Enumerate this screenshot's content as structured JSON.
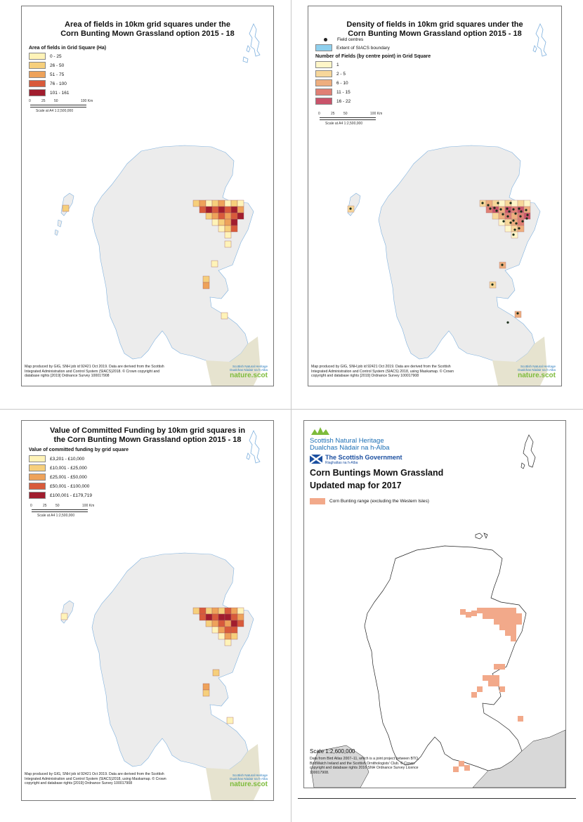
{
  "panels": {
    "area": {
      "title_line1": "Area of fields in 10km grid squares under the",
      "title_line2": "Corn Bunting Mown Grassland option 2015 - 18",
      "legend_title": "Area of fields in Grid Square (Ha)",
      "legend": [
        {
          "label": "0 - 25",
          "color": "#fff3b8"
        },
        {
          "label": "26 - 50",
          "color": "#f6cf7c"
        },
        {
          "label": "51 - 75",
          "color": "#eea25a"
        },
        {
          "label": "76 - 100",
          "color": "#d85a3b"
        },
        {
          "label": "101 - 161",
          "color": "#a11d2e"
        }
      ],
      "scale_ticks": [
        "0",
        "25",
        "50",
        "100 Km"
      ],
      "scale_text": "Scale at A4 1:2,500,000",
      "credit": "Map produced by GIG, SNH job id 92421 Oct 2019. Data are derived from the Scottish Integrated Administration and Control System (SIACS)2018. © Crown copyright and database rights [2019] Ordnance Survey 100017908"
    },
    "density": {
      "title_line1": "Density of fields in 10km grid squares under the",
      "title_line2": "Corn Bunting Mown Grassland option 2015 - 18",
      "point_label": "Field centres",
      "boundary_label": "Extent of SIACS boundary",
      "legend_title": "Number of Fields (by centre point) in Grid Square",
      "legend": [
        {
          "label": "1",
          "color": "#fff6c8"
        },
        {
          "label": "2 - 5",
          "color": "#f7d79a"
        },
        {
          "label": "6 - 10",
          "color": "#eeae7e"
        },
        {
          "label": "11 - 15",
          "color": "#e07f74"
        },
        {
          "label": "16 - 22",
          "color": "#c9536a"
        }
      ],
      "scale_ticks": [
        "0",
        "25",
        "50",
        "100 Km"
      ],
      "scale_text": "Scale at A4 1:2,500,000",
      "credit": "Map produced by GIG, SNH job id 92421 Oct 2019. Data are derived from the Scottish Integrated Administration and Control System (SIACS) 2018, using Maskamap. © Crown copyright and database rights [2019] Ordnance Survey 100017908"
    },
    "funding": {
      "title_line1": "Value of Committed Funding by 10km grid squares in",
      "title_line2": "the Corn Bunting Mown Grassland option 2015 - 18",
      "legend_title": "Value of committed funding by grid square",
      "legend": [
        {
          "label": "£3,201 - £10,000",
          "color": "#fff3b8"
        },
        {
          "label": "£10,001 - £25,000",
          "color": "#f6cf7c"
        },
        {
          "label": "£25,001 - £50,000",
          "color": "#eea25a"
        },
        {
          "label": "£50,001 - £100,000",
          "color": "#d85a3b"
        },
        {
          "label": "£100,001 - £179,719",
          "color": "#a11d2e"
        }
      ],
      "scale_ticks": [
        "0",
        "25",
        "50",
        "100 Km"
      ],
      "scale_text": "Scale at A4 1:2,500,000",
      "credit": "Map produced by GIG, SNH job id 92421 Oct 2019. Data are derived from the Scottish Integrated Administration and Control System (SIACS)2018, using Maskamap. © Crown copyright and database rights [2019] Ordnance Survey 100017908"
    },
    "range": {
      "org1": "Scottish Natural Heritage",
      "org1_gaelic": "Dualchas Nàdair na h-Alba",
      "org2": "The Scottish Government",
      "org2_gaelic": "Riaghaltas na h-Alba",
      "title_line1": "Corn Buntings Mown Grassland",
      "title_line2": "Updated map for 2017",
      "legend_label": "Corn Bunting range (excluding the Western Isles)",
      "legend_color": "#f2a98a",
      "scale_text": "Scale  1:2,600,000",
      "credit": "Data from Bird Atlas 2007–11, which is a joint project between BTO, BirdWatch Ireland and the Scottish Ornithologists' Club. © Crown copyright and database rights 2016 SNH Ordnance Survey Licence 100017908."
    }
  },
  "logo": {
    "snh_line1": "Scottish Natural Heritage",
    "snh_line2": "Dualchas Nàdair na h-Alba",
    "nature": "nature.scot"
  }
}
